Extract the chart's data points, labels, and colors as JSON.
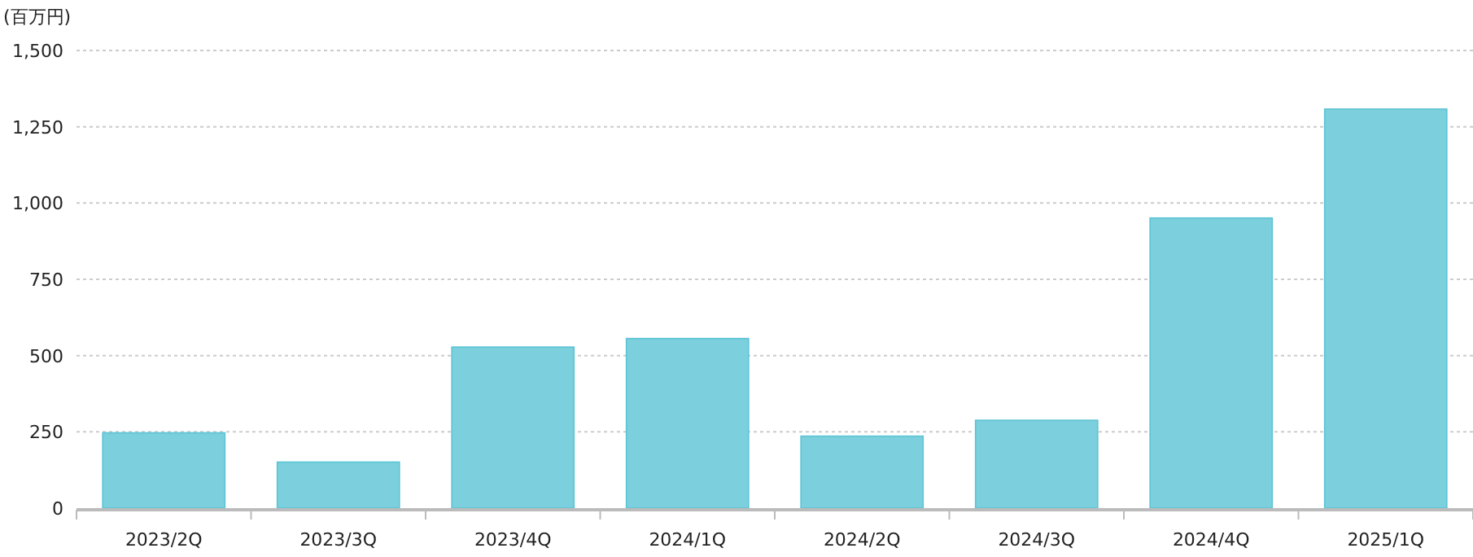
{
  "chart_data": {
    "type": "bar",
    "ylabel": "(百万円)",
    "categories": [
      "2023/2Q",
      "2023/3Q",
      "2023/4Q",
      "2024/1Q",
      "2024/2Q",
      "2024/3Q",
      "2024/4Q",
      "2025/1Q"
    ],
    "values": [
      247,
      151,
      528,
      556,
      236,
      288,
      951,
      1308
    ],
    "color": "#7ccfdc",
    "ylim": [
      0,
      1500
    ],
    "yticks": [
      {
        "value": 0,
        "label": "0"
      },
      {
        "value": 250,
        "label": "250"
      },
      {
        "value": 500,
        "label": "500"
      },
      {
        "value": 750,
        "label": "750"
      },
      {
        "value": 1000,
        "label": "1,000"
      },
      {
        "value": 1250,
        "label": "1,250"
      },
      {
        "value": 1500,
        "label": "1,500"
      }
    ],
    "grid": "y"
  }
}
